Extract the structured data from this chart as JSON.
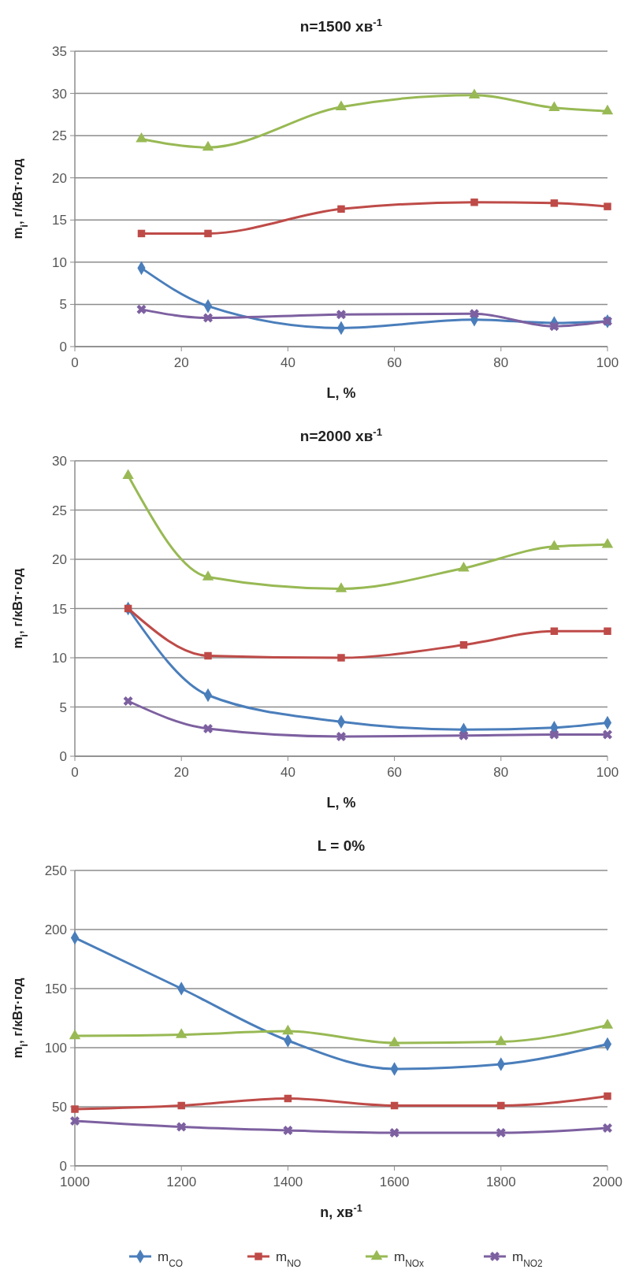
{
  "chart_data": [
    {
      "type": "line",
      "title": "n=1500 хв$^{-1}$",
      "xlabel": "L, %",
      "ylabel": "m$_{i}$, г/кВт·год",
      "x": [
        12.5,
        25,
        50,
        75,
        90,
        100
      ],
      "xlim": [
        0,
        100
      ],
      "xticks": [
        0,
        20,
        40,
        60,
        80,
        100
      ],
      "ylim": [
        0,
        35
      ],
      "yticks": [
        0,
        5,
        10,
        15,
        20,
        25,
        30,
        35
      ],
      "grid": "y",
      "line_style": "solid",
      "series": [
        {
          "color": "#4a7ebb",
          "marker": "diamond",
          "values": [
            9.3,
            4.8,
            2.2,
            3.2,
            2.8,
            3.0
          ]
        },
        {
          "color": "#be4b48",
          "marker": "square",
          "values": [
            13.4,
            13.4,
            16.3,
            17.1,
            17.0,
            16.6
          ]
        },
        {
          "color": "#98b954",
          "marker": "triangle",
          "values": [
            24.6,
            23.6,
            28.4,
            29.8,
            28.3,
            27.9
          ]
        },
        {
          "color": "#7d60a0",
          "marker": "cross",
          "values": [
            4.4,
            3.4,
            3.8,
            3.9,
            2.4,
            3.0
          ]
        }
      ]
    },
    {
      "type": "line",
      "title": "n=2000 хв$^{-1}$",
      "xlabel": "L, %",
      "ylabel": "m$_{i}$, г/кВт·год",
      "x": [
        10,
        25,
        50,
        73,
        90,
        100
      ],
      "xlim": [
        0,
        100
      ],
      "xticks": [
        0,
        20,
        40,
        60,
        80,
        100
      ],
      "ylim": [
        0,
        30
      ],
      "yticks": [
        0,
        5,
        10,
        15,
        20,
        25,
        30
      ],
      "grid": "y",
      "line_style": "solid",
      "legend": "bottom",
      "series": [
        {
          "name": "m$_{CO}$",
          "color": "#4a7ebb",
          "marker": "diamond",
          "values": [
            15.0,
            6.2,
            3.5,
            2.7,
            2.9,
            3.4
          ]
        },
        {
          "name": "m$_{NO}$",
          "color": "#be4b48",
          "marker": "square",
          "values": [
            15.0,
            10.2,
            10.0,
            11.3,
            12.7,
            12.7
          ]
        },
        {
          "name": "m$_{NOx}$",
          "color": "#98b954",
          "marker": "triangle",
          "values": [
            28.5,
            18.2,
            17.0,
            19.1,
            21.3,
            21.5
          ]
        },
        {
          "name": "m$_{NO2}$",
          "color": "#7d60a0",
          "marker": "cross",
          "values": [
            5.6,
            2.8,
            2.0,
            2.1,
            2.2,
            2.2
          ]
        }
      ]
    },
    {
      "type": "line",
      "title": "L = 0%",
      "xlabel": "n, хв$^{-1}$",
      "ylabel": "m$_{i}$, г/кВт·год",
      "x": [
        1000,
        1200,
        1400,
        1600,
        1800,
        2000
      ],
      "xlim": [
        1000,
        2000
      ],
      "xticks": [
        1000,
        1200,
        1400,
        1600,
        1800,
        2000
      ],
      "ylim": [
        0,
        250
      ],
      "yticks": [
        0,
        50,
        100,
        150,
        200,
        250
      ],
      "grid": "y",
      "line_style": "solid",
      "series": [
        {
          "color": "#4a7ebb",
          "marker": "diamond",
          "values": [
            193,
            150,
            106,
            82,
            86,
            103
          ]
        },
        {
          "color": "#be4b48",
          "marker": "square",
          "values": [
            48,
            51,
            57,
            51,
            51,
            59
          ]
        },
        {
          "color": "#98b954",
          "marker": "triangle",
          "values": [
            110,
            111,
            114,
            104,
            105,
            119
          ]
        },
        {
          "color": "#7d60a0",
          "marker": "cross",
          "values": [
            38,
            33,
            30,
            28,
            28,
            32
          ]
        }
      ]
    }
  ]
}
